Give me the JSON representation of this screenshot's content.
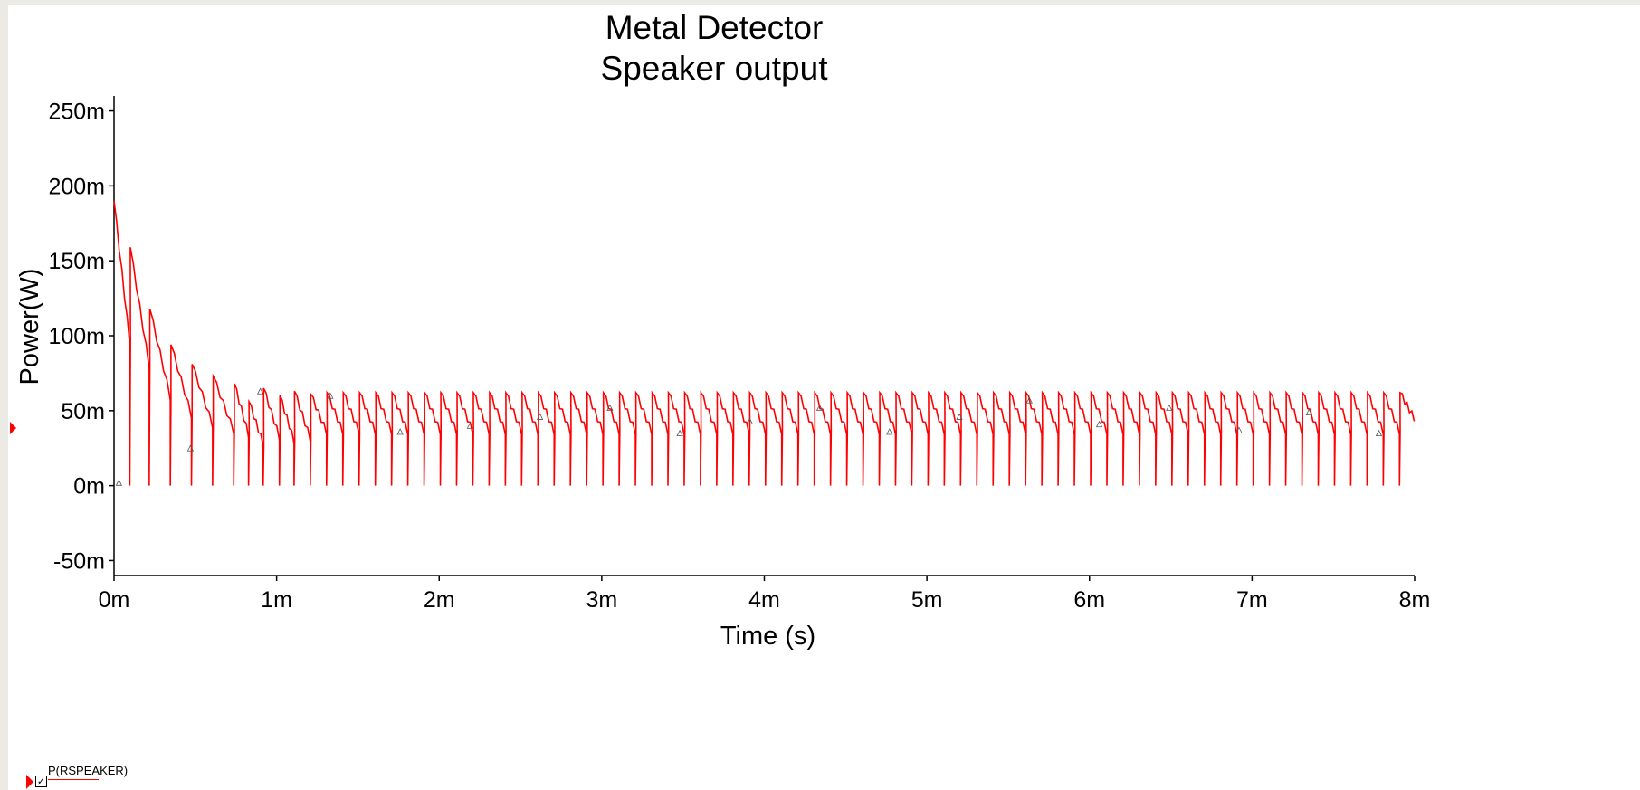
{
  "chart_data": {
    "type": "line",
    "title": "Metal Detector",
    "subtitle": "Speaker output",
    "xlabel": "Time (s)",
    "ylabel": "Power(W)",
    "xlim": [
      0,
      0.008
    ],
    "ylim": [
      -0.06,
      0.26
    ],
    "x_ticks": [
      0,
      0.001,
      0.002,
      0.003,
      0.004,
      0.005,
      0.006,
      0.007,
      0.008
    ],
    "x_tick_labels": [
      "0m",
      "1m",
      "2m",
      "3m",
      "4m",
      "5m",
      "6m",
      "7m",
      "8m"
    ],
    "y_ticks": [
      -0.05,
      0,
      0.05,
      0.1,
      0.15,
      0.2,
      0.25
    ],
    "y_tick_labels": [
      "-50m",
      "0m",
      "50m",
      "100m",
      "150m",
      "200m",
      "250m"
    ],
    "grid": false,
    "legend_placement": "bottom-left",
    "series": [
      {
        "name": "P(RSPEAKER)",
        "color": "#ff0000",
        "peaks": [
          [
            0.0,
            0.19
          ],
          [
            0.0001,
            0.159
          ],
          [
            0.00022,
            0.118
          ],
          [
            0.00035,
            0.094
          ],
          [
            0.00048,
            0.081
          ],
          [
            0.00061,
            0.073
          ],
          [
            0.00074,
            0.068
          ],
          [
            0.00083,
            0.056
          ],
          [
            0.00092,
            0.065
          ],
          [
            0.00102,
            0.06
          ],
          [
            0.00111,
            0.063
          ],
          [
            0.00121,
            0.061
          ]
        ],
        "steady_period": 0.0001,
        "steady_peak": 0.062,
        "steady_trough": 0.036,
        "spike_min": 0.0,
        "end_value": 0.045
      }
    ]
  },
  "legend": {
    "checked_glyph": "✓",
    "label": "P(RSPEAKER)"
  }
}
